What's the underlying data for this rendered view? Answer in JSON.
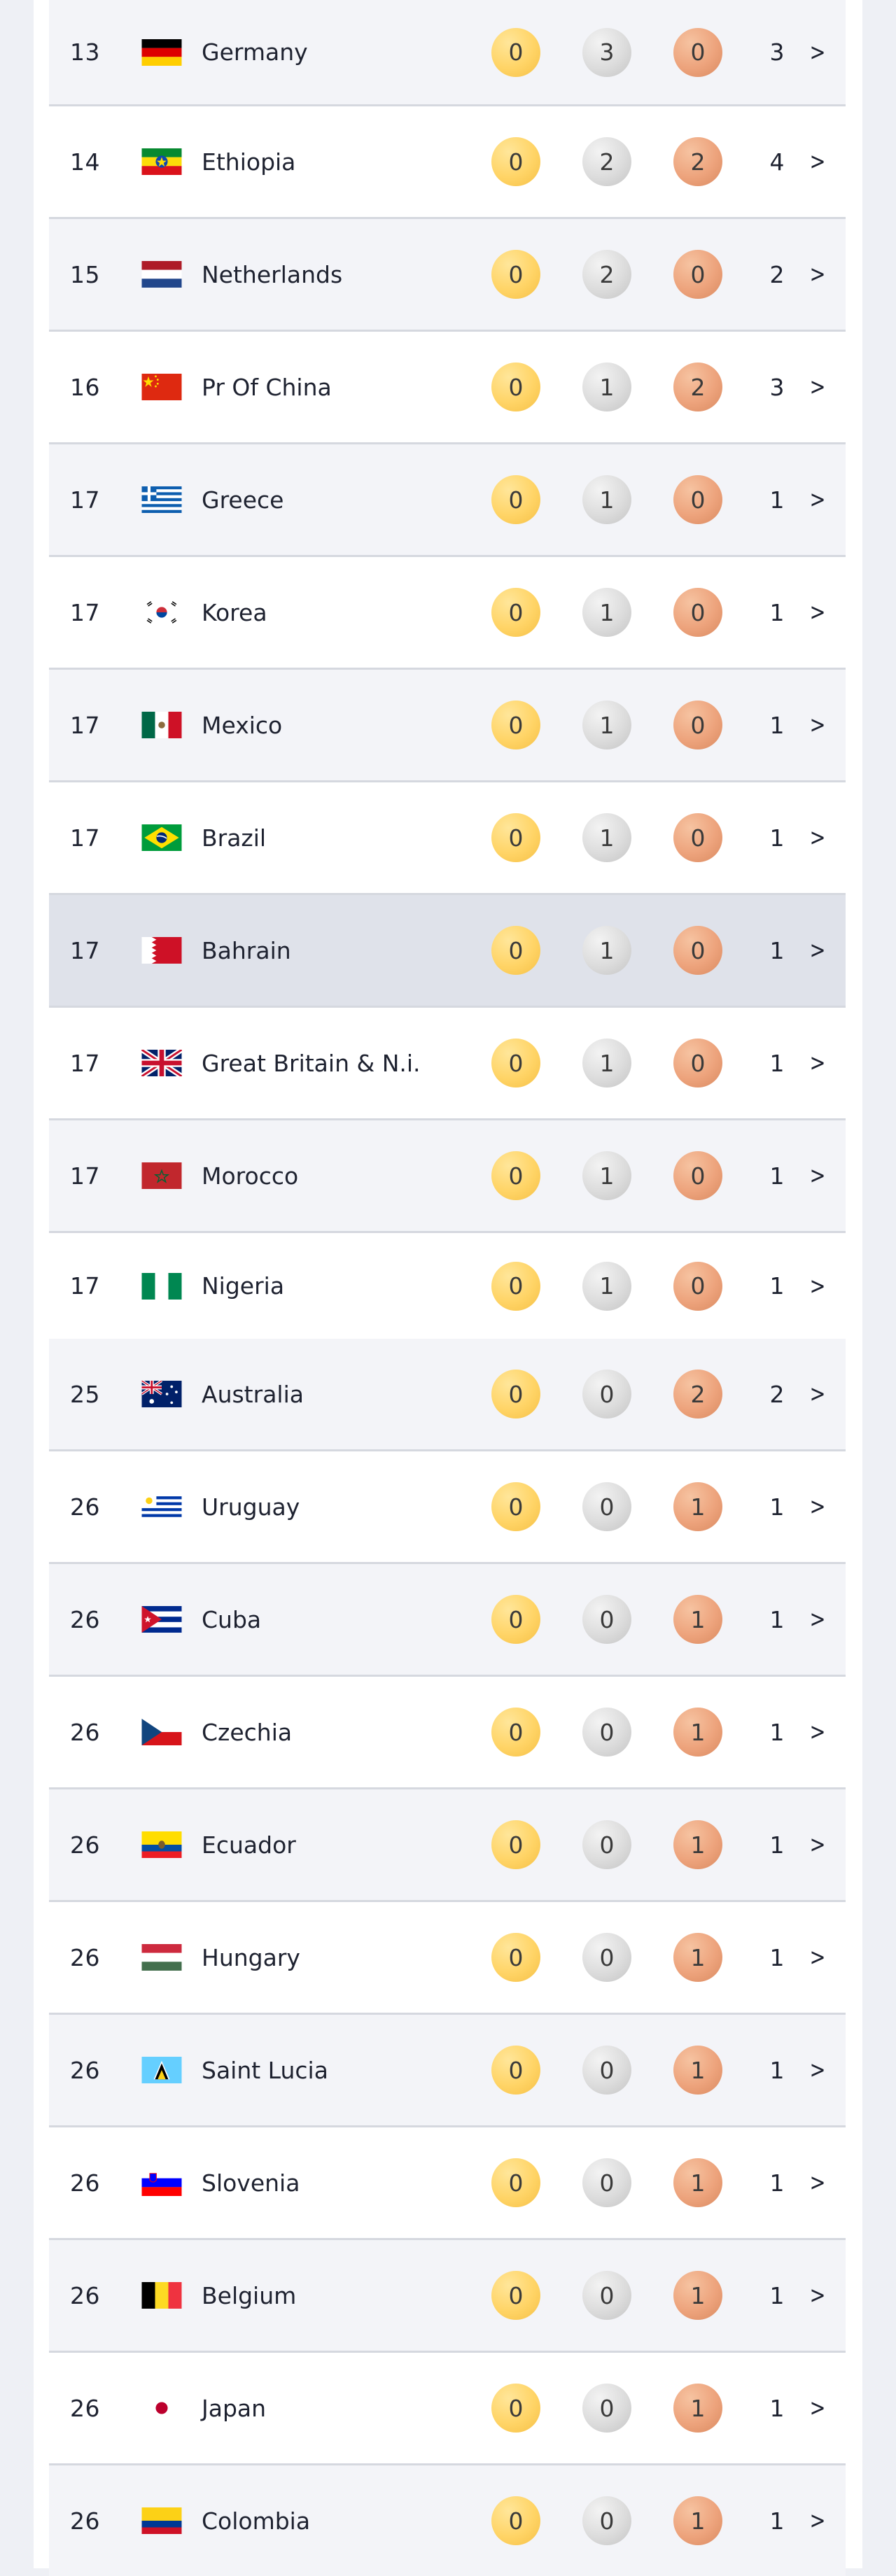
{
  "colors": {
    "gold": "#ffd466",
    "silver": "#dcdcdc",
    "bronze": "#eda37c",
    "highlight_row": "#dfe2ea"
  },
  "rows": [
    {
      "rank": "13",
      "country": "Germany",
      "flag": "germany-flag-icon",
      "gold": "0",
      "silver": "3",
      "bronze": "0",
      "total": "3"
    },
    {
      "rank": "14",
      "country": "Ethiopia",
      "flag": "ethiopia-flag-icon",
      "gold": "0",
      "silver": "2",
      "bronze": "2",
      "total": "4"
    },
    {
      "rank": "15",
      "country": "Netherlands",
      "flag": "netherlands-flag-icon",
      "gold": "0",
      "silver": "2",
      "bronze": "0",
      "total": "2"
    },
    {
      "rank": "16",
      "country": "Pr Of China",
      "flag": "china-flag-icon",
      "gold": "0",
      "silver": "1",
      "bronze": "2",
      "total": "3"
    },
    {
      "rank": "17",
      "country": "Greece",
      "flag": "greece-flag-icon",
      "gold": "0",
      "silver": "1",
      "bronze": "0",
      "total": "1"
    },
    {
      "rank": "17",
      "country": "Korea",
      "flag": "korea-flag-icon",
      "gold": "0",
      "silver": "1",
      "bronze": "0",
      "total": "1"
    },
    {
      "rank": "17",
      "country": "Mexico",
      "flag": "mexico-flag-icon",
      "gold": "0",
      "silver": "1",
      "bronze": "0",
      "total": "1"
    },
    {
      "rank": "17",
      "country": "Brazil",
      "flag": "brazil-flag-icon",
      "gold": "0",
      "silver": "1",
      "bronze": "0",
      "total": "1"
    },
    {
      "rank": "17",
      "country": "Bahrain",
      "flag": "bahrain-flag-icon",
      "gold": "0",
      "silver": "1",
      "bronze": "0",
      "total": "1"
    },
    {
      "rank": "17",
      "country": "Great Britain & N.i.",
      "flag": "great-britain-flag-icon",
      "gold": "0",
      "silver": "1",
      "bronze": "0",
      "total": "1"
    },
    {
      "rank": "17",
      "country": "Morocco",
      "flag": "morocco-flag-icon",
      "gold": "0",
      "silver": "1",
      "bronze": "0",
      "total": "1"
    },
    {
      "rank": "17",
      "country": "Nigeria",
      "flag": "nigeria-flag-icon",
      "gold": "0",
      "silver": "1",
      "bronze": "0",
      "total": "1"
    },
    {
      "rank": "25",
      "country": "Australia",
      "flag": "australia-flag-icon",
      "gold": "0",
      "silver": "0",
      "bronze": "2",
      "total": "2"
    },
    {
      "rank": "26",
      "country": "Uruguay",
      "flag": "uruguay-flag-icon",
      "gold": "0",
      "silver": "0",
      "bronze": "1",
      "total": "1"
    },
    {
      "rank": "26",
      "country": "Cuba",
      "flag": "cuba-flag-icon",
      "gold": "0",
      "silver": "0",
      "bronze": "1",
      "total": "1"
    },
    {
      "rank": "26",
      "country": "Czechia",
      "flag": "czechia-flag-icon",
      "gold": "0",
      "silver": "0",
      "bronze": "1",
      "total": "1"
    },
    {
      "rank": "26",
      "country": "Ecuador",
      "flag": "ecuador-flag-icon",
      "gold": "0",
      "silver": "0",
      "bronze": "1",
      "total": "1"
    },
    {
      "rank": "26",
      "country": "Hungary",
      "flag": "hungary-flag-icon",
      "gold": "0",
      "silver": "0",
      "bronze": "1",
      "total": "1"
    },
    {
      "rank": "26",
      "country": "Saint Lucia",
      "flag": "saint-lucia-flag-icon",
      "gold": "0",
      "silver": "0",
      "bronze": "1",
      "total": "1"
    },
    {
      "rank": "26",
      "country": "Slovenia",
      "flag": "slovenia-flag-icon",
      "gold": "0",
      "silver": "0",
      "bronze": "1",
      "total": "1"
    },
    {
      "rank": "26",
      "country": "Belgium",
      "flag": "belgium-flag-icon",
      "gold": "0",
      "silver": "0",
      "bronze": "1",
      "total": "1"
    },
    {
      "rank": "26",
      "country": "Japan",
      "flag": "japan-flag-icon",
      "gold": "0",
      "silver": "0",
      "bronze": "1",
      "total": "1"
    },
    {
      "rank": "26",
      "country": "Colombia",
      "flag": "colombia-flag-icon",
      "gold": "0",
      "silver": "0",
      "bronze": "1",
      "total": "1"
    }
  ]
}
